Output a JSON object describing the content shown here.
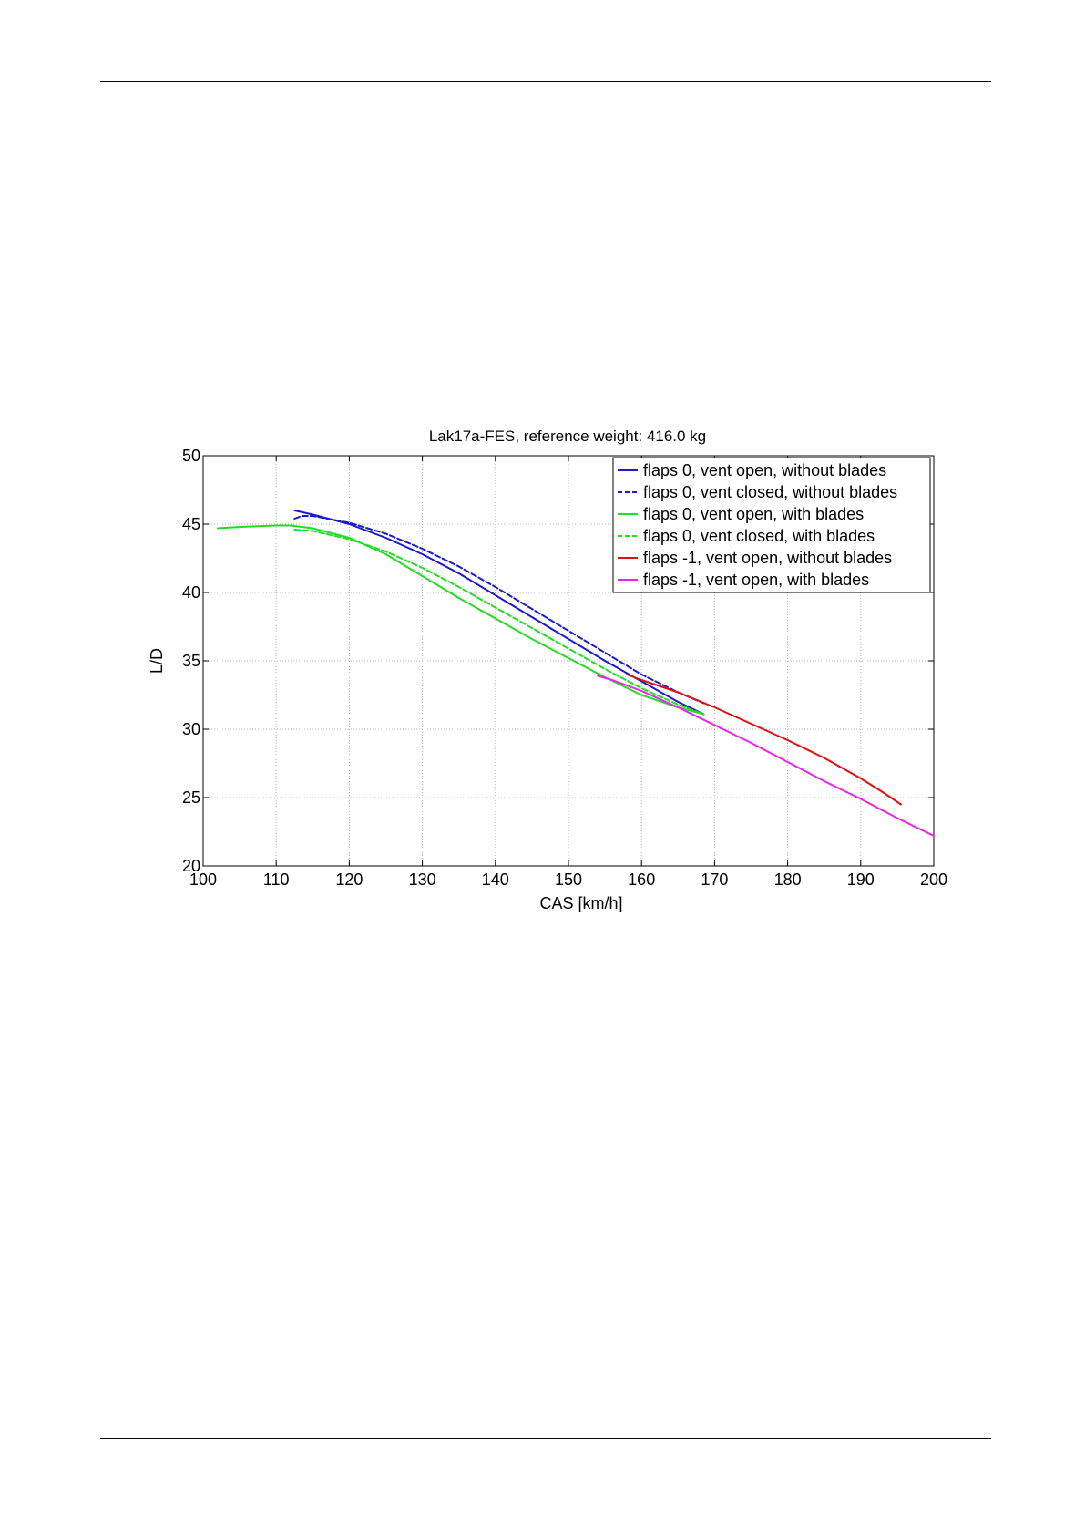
{
  "chart_data": {
    "type": "line",
    "title": "Lak17a-FES, reference weight: 416.0 kg",
    "xlabel": "CAS [km/h]",
    "ylabel": "L/D",
    "xlim": [
      100,
      200
    ],
    "ylim": [
      20,
      50
    ],
    "xticks": [
      100,
      110,
      120,
      130,
      140,
      150,
      160,
      170,
      180,
      190,
      200
    ],
    "yticks": [
      20,
      25,
      30,
      35,
      40,
      45,
      50
    ],
    "grid": true,
    "legend_position": "top-right",
    "series": [
      {
        "name": "flaps 0, vent open, without blades",
        "color": "#1a1acc",
        "dash": "solid",
        "x": [
          112.5,
          115,
          120,
          125,
          130,
          135,
          140,
          145,
          150,
          155,
          160,
          165,
          168.5
        ],
        "y": [
          46.0,
          45.7,
          45.0,
          44.0,
          42.8,
          41.4,
          39.8,
          38.2,
          36.6,
          35.0,
          33.5,
          32.0,
          31.1
        ]
      },
      {
        "name": "flaps 0, vent closed, without blades",
        "color": "#1a1acc",
        "dash": "dashed",
        "x": [
          112.5,
          113.5,
          115,
          120,
          125,
          130,
          135,
          140,
          145,
          150,
          155,
          160,
          165,
          168.5
        ],
        "y": [
          45.4,
          45.6,
          45.6,
          45.1,
          44.3,
          43.2,
          41.9,
          40.4,
          38.8,
          37.2,
          35.6,
          34.0,
          32.7,
          31.9
        ]
      },
      {
        "name": "flaps 0, vent open, with blades",
        "color": "#22dd22",
        "dash": "solid",
        "x": [
          102,
          105,
          110,
          112,
          115,
          120,
          125,
          130,
          135,
          140,
          145,
          150,
          155,
          160,
          165,
          168.5
        ],
        "y": [
          44.7,
          44.8,
          44.9,
          44.9,
          44.7,
          44.0,
          42.8,
          41.2,
          39.6,
          38.1,
          36.6,
          35.2,
          33.8,
          32.5,
          31.6,
          31.1
        ]
      },
      {
        "name": "flaps 0, vent closed, with blades",
        "color": "#22dd22",
        "dash": "dashed",
        "x": [
          112.5,
          115,
          120,
          125,
          130,
          135,
          140,
          145,
          150,
          155,
          160,
          165,
          168
        ],
        "y": [
          44.6,
          44.5,
          43.9,
          43.0,
          41.8,
          40.4,
          38.9,
          37.4,
          35.9,
          34.4,
          33.0,
          31.8,
          31.2
        ]
      },
      {
        "name": "flaps -1, vent open, without blades",
        "color": "#dd1111",
        "dash": "solid",
        "x": [
          158,
          160,
          165,
          170,
          175,
          180,
          185,
          190,
          193,
          195.5
        ],
        "y": [
          34.0,
          33.6,
          32.7,
          31.6,
          30.4,
          29.2,
          27.9,
          26.4,
          25.4,
          24.5
        ]
      },
      {
        "name": "flaps -1, vent open, with blades",
        "color": "#ee22ee",
        "dash": "solid",
        "x": [
          154,
          156,
          160,
          165,
          170,
          175,
          180,
          185,
          190,
          195,
          200
        ],
        "y": [
          33.9,
          33.6,
          32.8,
          31.6,
          30.3,
          29.0,
          27.6,
          26.2,
          24.9,
          23.5,
          22.2
        ]
      }
    ]
  }
}
